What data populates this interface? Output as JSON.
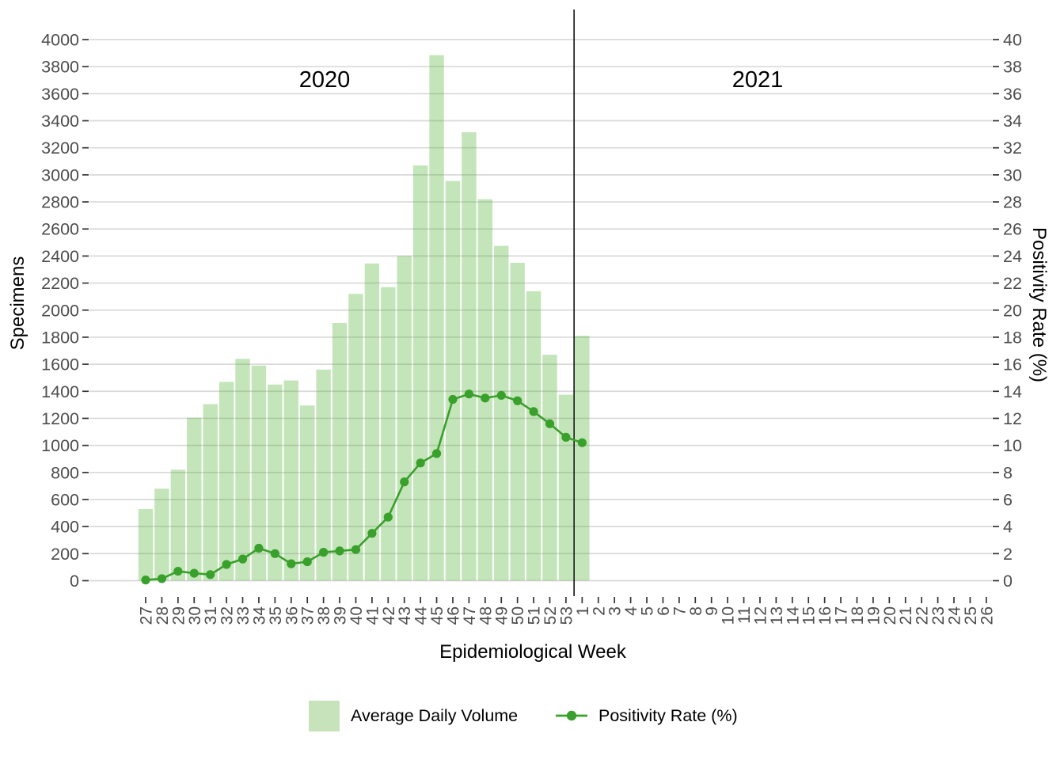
{
  "chart_data": {
    "type": "bar+line",
    "title": "",
    "x_axis": {
      "title": "Epidemiological Week",
      "categories": [
        "27",
        "28",
        "29",
        "30",
        "31",
        "32",
        "33",
        "34",
        "35",
        "36",
        "37",
        "38",
        "39",
        "40",
        "41",
        "42",
        "43",
        "44",
        "45",
        "46",
        "47",
        "48",
        "49",
        "50",
        "51",
        "52",
        "53",
        "1",
        "2",
        "3",
        "4",
        "5",
        "6",
        "7",
        "8",
        "9",
        "10",
        "11",
        "12",
        "13",
        "14",
        "15",
        "16",
        "17",
        "18",
        "19",
        "20",
        "21",
        "22",
        "23",
        "24",
        "25",
        "26"
      ]
    },
    "left_axis": {
      "title": "Specimens",
      "min": 0,
      "max": 4000,
      "step": 200,
      "ticks": [
        0,
        200,
        400,
        600,
        800,
        1000,
        1200,
        1400,
        1600,
        1800,
        2000,
        2200,
        2400,
        2600,
        2800,
        3000,
        3200,
        3400,
        3600,
        3800,
        4000
      ]
    },
    "right_axis": {
      "title": "Positivity Rate (%)",
      "min": 0,
      "max": 40,
      "step": 2,
      "ticks": [
        0,
        2,
        4,
        6,
        8,
        10,
        12,
        14,
        16,
        18,
        20,
        22,
        24,
        26,
        28,
        30,
        32,
        34,
        36,
        38,
        40
      ]
    },
    "annotations": {
      "years": [
        {
          "label": "2020"
        },
        {
          "label": "2021"
        }
      ],
      "separator_between_categories": [
        "53",
        "1"
      ]
    },
    "series": [
      {
        "name": "Average Daily Volume",
        "type": "bar",
        "axis": "left",
        "color": "rgba(77,175,42,0.33)",
        "legend_swatch_color": "#c7e3bb",
        "values": [
          530,
          680,
          820,
          1205,
          1305,
          1470,
          1640,
          1590,
          1450,
          1480,
          1295,
          1560,
          1905,
          2120,
          2345,
          2170,
          2400,
          3070,
          3885,
          2955,
          3315,
          2820,
          2475,
          2350,
          2140,
          1670,
          1375,
          1810,
          null,
          null,
          null,
          null,
          null,
          null,
          null,
          null,
          null,
          null,
          null,
          null,
          null,
          null,
          null,
          null,
          null,
          null,
          null,
          null,
          null,
          null,
          null,
          null,
          null
        ]
      },
      {
        "name": "Positivity Rate (%)",
        "type": "line",
        "axis": "right",
        "color": "#3aa02c",
        "values": [
          0.05,
          0.15,
          0.7,
          0.55,
          0.45,
          1.2,
          1.6,
          2.4,
          2.0,
          1.25,
          1.4,
          2.1,
          2.2,
          2.3,
          3.5,
          4.7,
          7.3,
          8.7,
          9.4,
          13.4,
          13.8,
          13.5,
          13.7,
          13.3,
          12.5,
          11.6,
          10.6,
          10.2,
          null,
          null,
          null,
          null,
          null,
          null,
          null,
          null,
          null,
          null,
          null,
          null,
          null,
          null,
          null,
          null,
          null,
          null,
          null,
          null,
          null,
          null,
          null,
          null,
          null
        ]
      }
    ],
    "layout": {
      "gridlines": "horizontal",
      "legend_position": "bottom"
    }
  },
  "legend": {
    "items": [
      {
        "label": "Average Daily Volume"
      },
      {
        "label": "Positivity Rate (%)"
      }
    ]
  },
  "colors": {
    "gridline": "#d9d9d9",
    "tick_mark": "#333333",
    "tick_label": "#4d4d4d",
    "axis_title": "#000000",
    "year_label": "#000000",
    "separator": "#000000",
    "background": "#ffffff"
  }
}
